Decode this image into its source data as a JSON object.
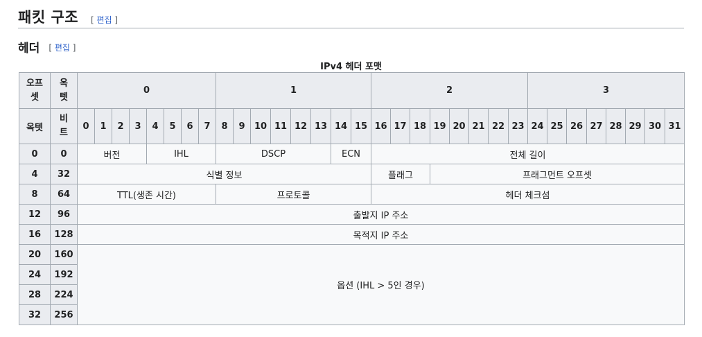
{
  "section": {
    "title": "패킷 구조",
    "edit_label": "편집"
  },
  "subsection": {
    "title": "헤더",
    "edit_label": "편집"
  },
  "table": {
    "caption": "IPv4 헤더 포맷",
    "corner_offset_label": "오프셋",
    "corner_octet_label": "옥텟",
    "octet_row_label": "옥텟",
    "bit_row_label": "비트",
    "octets": [
      "0",
      "1",
      "2",
      "3"
    ],
    "bits": [
      "0",
      "1",
      "2",
      "3",
      "4",
      "5",
      "6",
      "7",
      "8",
      "9",
      "10",
      "11",
      "12",
      "13",
      "14",
      "15",
      "16",
      "17",
      "18",
      "19",
      "20",
      "21",
      "22",
      "23",
      "24",
      "25",
      "26",
      "27",
      "28",
      "29",
      "30",
      "31"
    ],
    "rows": [
      {
        "octet": "0",
        "bit": "0",
        "fields": [
          "버전",
          "IHL",
          "DSCP",
          "ECN",
          "전체 길이"
        ]
      },
      {
        "octet": "4",
        "bit": "32",
        "fields": [
          "식별 정보",
          "플래그",
          "프래그먼트 오프셋"
        ]
      },
      {
        "octet": "8",
        "bit": "64",
        "fields": [
          "TTL(생존 시간)",
          "프로토콜",
          "헤더 체크섬"
        ]
      },
      {
        "octet": "12",
        "bit": "96",
        "fields": [
          "출발지 IP 주소"
        ]
      },
      {
        "octet": "16",
        "bit": "128",
        "fields": [
          "목적지 IP 주소"
        ]
      },
      {
        "octet": "20",
        "bit": "160",
        "fields": [
          "옵션 (IHL > 5인 경우)"
        ]
      },
      {
        "octet": "24",
        "bit": "192",
        "fields": []
      },
      {
        "octet": "28",
        "bit": "224",
        "fields": []
      },
      {
        "octet": "32",
        "bit": "256",
        "fields": []
      }
    ]
  }
}
